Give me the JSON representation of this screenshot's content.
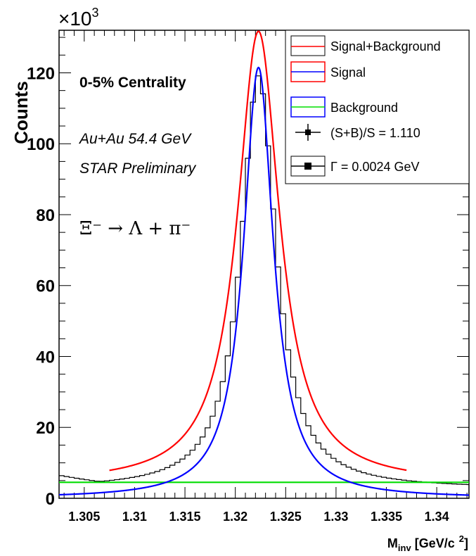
{
  "chart_data": {
    "type": "line",
    "multiplier_label": "×10",
    "multiplier_exp": "3",
    "xlabel_main": "M",
    "xlabel_sub": "inv",
    "xlabel_units": "[GeV/c",
    "xlabel_units_exp": "2",
    "xlabel_close": "]",
    "ylabel": "Counts",
    "xlim": [
      1.3025,
      1.3432
    ],
    "ylim": [
      0,
      132
    ],
    "x_ticks": [
      "1.305",
      "1.31",
      "1.315",
      "1.32",
      "1.325",
      "1.33",
      "1.335",
      "1.34"
    ],
    "x_tick_values": [
      1.305,
      1.31,
      1.315,
      1.32,
      1.325,
      1.33,
      1.335,
      1.34
    ],
    "y_ticks": [
      "0",
      "20",
      "40",
      "60",
      "80",
      "100",
      "120"
    ],
    "y_tick_values": [
      0,
      20,
      40,
      60,
      80,
      100,
      120
    ],
    "legend": [
      {
        "label": "Signal+Background",
        "color": "#000000",
        "marker": "box-red-line"
      },
      {
        "label": "Signal",
        "color": "#ff0000",
        "marker": "box-blue-line"
      },
      {
        "label": "Background",
        "color": "#0000ff",
        "marker": "box-green-line"
      },
      {
        "label": "(S+B)/S = 1.110",
        "color": "#000000",
        "marker": "point"
      },
      {
        "label": "Γ = 0.0024 GeV",
        "color": "#000000",
        "marker": "box-square"
      }
    ],
    "annotations": {
      "centrality": "0-5% Centrality",
      "system": "Au+Au 54.4 GeV",
      "preliminary": "STAR Preliminary",
      "decay": "Ξ⁻ → Λ + π⁻"
    },
    "series": [
      {
        "name": "Signal+Background",
        "color": "#ff0000",
        "x_range": [
          1.3075,
          1.337
        ],
        "peak_x": 1.3223,
        "peak_y": 127.5,
        "background_level": 4.2,
        "width": 0.00255
      },
      {
        "name": "Signal",
        "color": "#0000ff",
        "x_range": [
          1.3025,
          1.3432
        ],
        "peak_x": 1.3223,
        "peak_y": 121.5,
        "width": 0.0018
      },
      {
        "name": "Background",
        "color": "#00dd00",
        "x_range": [
          1.3025,
          1.3432
        ],
        "y": 4.5
      },
      {
        "name": "Data",
        "color": "#000000",
        "type": "step",
        "x_range": [
          1.3025,
          1.3432
        ],
        "peak_x": 1.3223,
        "peak_y": 116.5,
        "width": 0.0021,
        "background_level": 2.7,
        "bin_width": 0.0005
      }
    ]
  }
}
